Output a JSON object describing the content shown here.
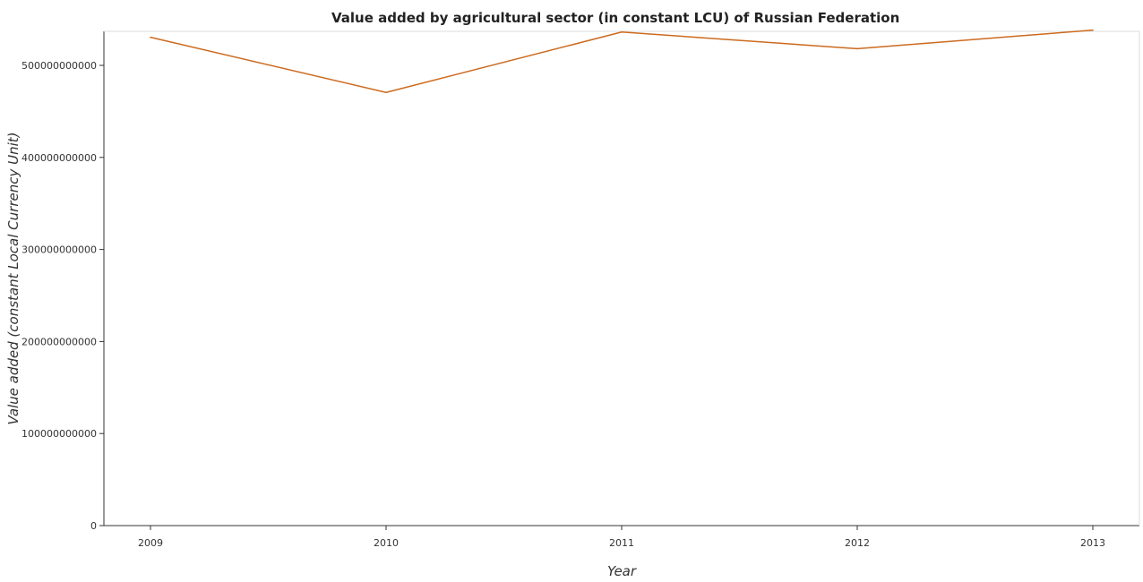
{
  "chart_data": {
    "type": "line",
    "title": "Value added by agricultural sector (in constant LCU) of Russian Federation",
    "xlabel": "Year",
    "ylabel": "Value added (constant Local Currency Unit)",
    "categories": [
      "2009",
      "2010",
      "2011",
      "2012",
      "2013"
    ],
    "series": [
      {
        "values": [
          530500000000,
          470600000000,
          536200000000,
          518100000000,
          538300000000
        ]
      }
    ],
    "ylim": [
      0,
      550000000000
    ],
    "yticks": [
      0,
      100000000000,
      200000000000,
      300000000000,
      400000000000,
      500000000000
    ],
    "ytick_labels": [
      "0",
      "100000000000",
      "200000000000",
      "300000000000",
      "400000000000",
      "500000000000"
    ],
    "grid": false,
    "line_color": "#cc6a1e",
    "axis_color": "#333333"
  }
}
